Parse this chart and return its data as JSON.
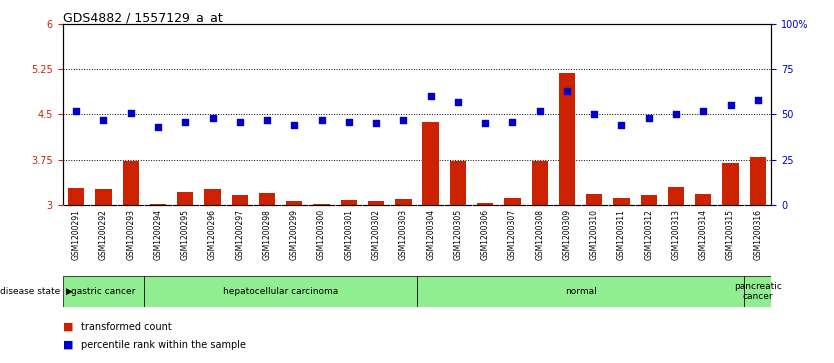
{
  "title": "GDS4882 / 1557129_a_at",
  "samples": [
    "GSM1200291",
    "GSM1200292",
    "GSM1200293",
    "GSM1200294",
    "GSM1200295",
    "GSM1200296",
    "GSM1200297",
    "GSM1200298",
    "GSM1200299",
    "GSM1200300",
    "GSM1200301",
    "GSM1200302",
    "GSM1200303",
    "GSM1200304",
    "GSM1200305",
    "GSM1200306",
    "GSM1200307",
    "GSM1200308",
    "GSM1200309",
    "GSM1200310",
    "GSM1200311",
    "GSM1200312",
    "GSM1200313",
    "GSM1200314",
    "GSM1200315",
    "GSM1200316"
  ],
  "bar_values": [
    3.28,
    3.26,
    3.73,
    3.02,
    3.22,
    3.27,
    3.17,
    3.2,
    3.07,
    3.02,
    3.08,
    3.06,
    3.1,
    4.38,
    3.73,
    3.04,
    3.12,
    3.73,
    5.18,
    3.18,
    3.12,
    3.16,
    3.3,
    3.18,
    3.7,
    3.8
  ],
  "percentile_values": [
    52,
    47,
    51,
    43,
    46,
    48,
    46,
    47,
    44,
    47,
    46,
    45,
    47,
    60,
    57,
    45,
    46,
    52,
    63,
    50,
    44,
    48,
    50,
    52,
    55,
    58
  ],
  "ylim_left": [
    3.0,
    6.0
  ],
  "ylim_right": [
    0,
    100
  ],
  "yticks_left": [
    3.0,
    3.75,
    4.5,
    5.25,
    6.0
  ],
  "yticks_right": [
    0,
    25,
    50,
    75,
    100
  ],
  "ytick_labels_left": [
    "3",
    "3.75",
    "4.5",
    "5.25",
    "6"
  ],
  "ytick_labels_right": [
    "0",
    "25",
    "50",
    "75",
    "100%"
  ],
  "hlines": [
    3.75,
    4.5,
    5.25
  ],
  "bar_color": "#cc2200",
  "dot_color": "#0000cc",
  "bar_width": 0.6,
  "disease_groups": [
    {
      "label": "gastric cancer",
      "start": 0,
      "end": 3
    },
    {
      "label": "hepatocellular carcinoma",
      "start": 3,
      "end": 13
    },
    {
      "label": "normal",
      "start": 13,
      "end": 25
    },
    {
      "label": "pancreatic\ncancer",
      "start": 25,
      "end": 26
    }
  ],
  "disease_group_color": "#90EE90",
  "legend_items": [
    {
      "color": "#cc2200",
      "label": "transformed count"
    },
    {
      "color": "#0000cc",
      "label": "percentile rank within the sample"
    }
  ],
  "xlabel_disease": "disease state",
  "tick_bg_color": "#d0d0d0",
  "plot_bg_color": "#ffffff"
}
